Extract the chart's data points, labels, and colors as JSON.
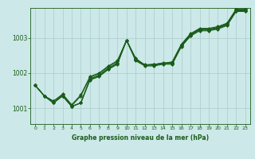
{
  "xlabel": "Graphe pression niveau de la mer (hPa)",
  "background_color": "#cce8e8",
  "grid_color": "#aacccc",
  "line_color": "#1a5c1a",
  "ylim": [
    1000.55,
    1003.85
  ],
  "xlim": [
    -0.5,
    23.5
  ],
  "yticks": [
    1001,
    1002,
    1003
  ],
  "xticks": [
    0,
    1,
    2,
    3,
    4,
    5,
    6,
    7,
    8,
    9,
    10,
    11,
    12,
    13,
    14,
    15,
    16,
    17,
    18,
    19,
    20,
    21,
    22,
    23
  ],
  "series1": [
    1001.65,
    1001.35,
    1001.15,
    1001.35,
    1001.05,
    1001.15,
    1001.8,
    1001.9,
    1002.1,
    1002.25,
    1002.93,
    1002.35,
    1002.2,
    1002.2,
    1002.25,
    1002.25,
    1002.75,
    1003.05,
    1003.2,
    1003.2,
    1003.25,
    1003.35,
    1003.75,
    1003.75
  ],
  "series2": [
    1001.65,
    1001.35,
    1001.15,
    1001.35,
    1001.05,
    1001.15,
    1001.82,
    1001.92,
    1002.12,
    1002.27,
    1002.93,
    1002.37,
    1002.22,
    1002.22,
    1002.27,
    1002.27,
    1002.77,
    1003.07,
    1003.22,
    1003.22,
    1003.27,
    1003.37,
    1003.77,
    1003.77
  ],
  "series3": [
    1001.65,
    1001.35,
    1001.15,
    1001.35,
    1001.05,
    1001.15,
    1001.84,
    1001.94,
    1002.14,
    1002.29,
    1002.93,
    1002.39,
    1002.24,
    1002.24,
    1002.29,
    1002.29,
    1002.79,
    1003.09,
    1003.24,
    1003.24,
    1003.29,
    1003.39,
    1003.79,
    1003.79
  ],
  "series4": [
    1001.65,
    1001.35,
    1001.2,
    1001.38,
    1001.07,
    1001.35,
    1001.88,
    1001.98,
    1002.18,
    1002.33,
    1002.93,
    1002.4,
    1002.22,
    1002.25,
    1002.27,
    1002.3,
    1002.8,
    1003.1,
    1003.25,
    1003.25,
    1003.3,
    1003.4,
    1003.8,
    1003.8
  ],
  "series5": [
    1001.65,
    1001.35,
    1001.2,
    1001.4,
    1001.1,
    1001.38,
    1001.9,
    1002.0,
    1002.2,
    1002.35,
    1002.93,
    1002.42,
    1002.22,
    1002.25,
    1002.27,
    1002.32,
    1002.82,
    1003.12,
    1003.27,
    1003.27,
    1003.32,
    1003.42,
    1003.82,
    1003.82
  ],
  "marker": "D",
  "markersize": 2.5,
  "linewidth": 0.8
}
